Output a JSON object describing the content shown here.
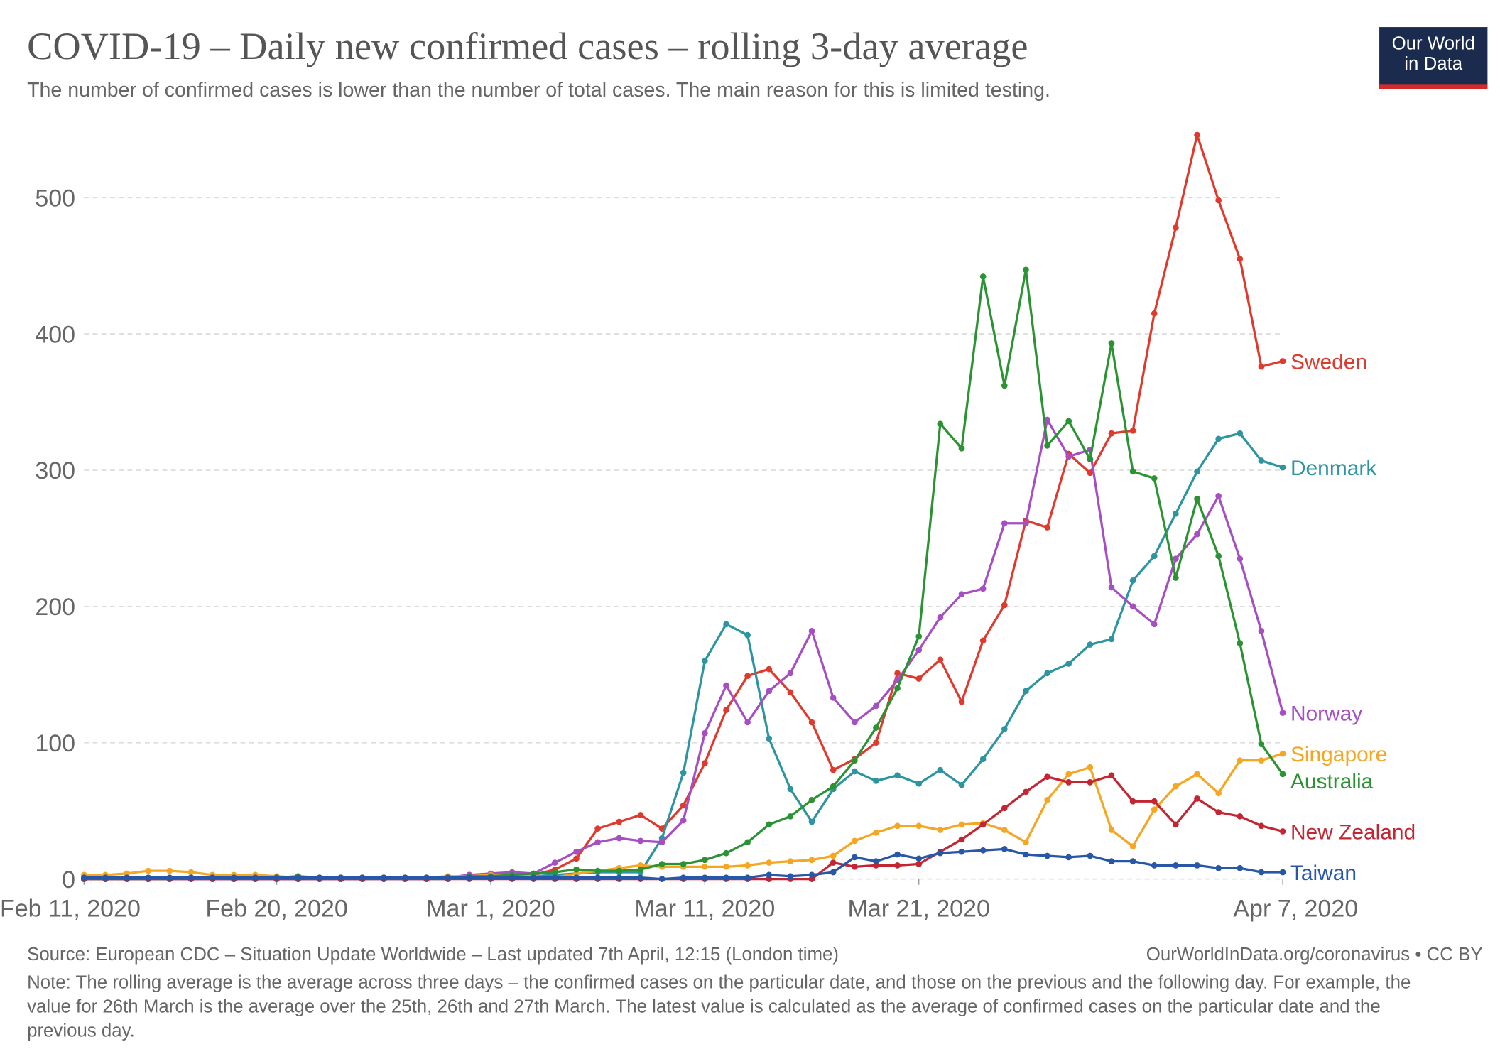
{
  "chart_data": {
    "type": "line",
    "title": "COVID-19 – Daily new confirmed cases – rolling 3-day average",
    "subtitle": "The number of confirmed cases is lower than the number of total cases. The main reason for this is limited testing.",
    "logo": [
      "Our World",
      "in Data"
    ],
    "source": "Source: European CDC – Situation Update Worldwide – Last updated 7th April, 12:15 (London time)",
    "attribution": "OurWorldInData.org/coronavirus • CC BY",
    "note": "Note: The rolling average is the average across three days – the confirmed cases on the particular date, and those on the previous and the following day. For example, the value for 26th March is the average over the 25th, 26th and 27th March. The latest value is calculated as the average of confirmed cases on the particular date and the previous day.",
    "x": [
      "2020-02-11",
      "2020-02-12",
      "2020-02-13",
      "2020-02-14",
      "2020-02-15",
      "2020-02-16",
      "2020-02-17",
      "2020-02-18",
      "2020-02-19",
      "2020-02-20",
      "2020-02-21",
      "2020-02-22",
      "2020-02-23",
      "2020-02-24",
      "2020-02-25",
      "2020-02-26",
      "2020-02-27",
      "2020-02-28",
      "2020-02-29",
      "2020-03-01",
      "2020-03-02",
      "2020-03-03",
      "2020-03-04",
      "2020-03-05",
      "2020-03-06",
      "2020-03-07",
      "2020-03-08",
      "2020-03-09",
      "2020-03-10",
      "2020-03-11",
      "2020-03-12",
      "2020-03-13",
      "2020-03-14",
      "2020-03-15",
      "2020-03-16",
      "2020-03-17",
      "2020-03-18",
      "2020-03-19",
      "2020-03-20",
      "2020-03-21",
      "2020-03-22",
      "2020-03-23",
      "2020-03-24",
      "2020-03-25",
      "2020-03-26",
      "2020-03-27",
      "2020-03-28",
      "2020-03-29",
      "2020-03-30",
      "2020-03-31",
      "2020-04-01",
      "2020-04-02",
      "2020-04-03",
      "2020-04-04",
      "2020-04-05",
      "2020-04-06",
      "2020-04-07"
    ],
    "xlim": [
      "2020-02-11",
      "2020-04-07"
    ],
    "xticks": [
      {
        "value": "2020-02-11",
        "label": "Feb 11, 2020"
      },
      {
        "value": "2020-02-20",
        "label": "Feb 20, 2020"
      },
      {
        "value": "2020-03-01",
        "label": "Mar 1, 2020"
      },
      {
        "value": "2020-03-11",
        "label": "Mar 11, 2020"
      },
      {
        "value": "2020-03-21",
        "label": "Mar 21, 2020"
      },
      {
        "value": "2020-04-07",
        "label": "Apr 7, 2020"
      }
    ],
    "ylim": [
      0,
      550
    ],
    "yticks": [
      0,
      100,
      200,
      300,
      400,
      500
    ],
    "grid": true,
    "series": [
      {
        "name": "Sweden",
        "color": "#e03a2f",
        "values": [
          0,
          0,
          0,
          0,
          0,
          0,
          0,
          0,
          0,
          0,
          0,
          0,
          0,
          0,
          1,
          1,
          1,
          1,
          3,
          3,
          3,
          3,
          7,
          15,
          37,
          42,
          47,
          37,
          54,
          85,
          124,
          149,
          154,
          137,
          115,
          80,
          88,
          100,
          151,
          147,
          161,
          130,
          175,
          201,
          263,
          258,
          312,
          298,
          327,
          329,
          415,
          478,
          546,
          498,
          455,
          376,
          380
        ]
      },
      {
        "name": "Denmark",
        "color": "#2e95a0",
        "values": [
          0,
          0,
          0,
          0,
          0,
          0,
          0,
          0,
          0,
          0,
          0,
          0,
          0,
          0,
          0,
          0,
          0,
          0,
          1,
          1,
          2,
          2,
          3,
          4,
          5,
          5,
          5,
          30,
          78,
          160,
          187,
          179,
          103,
          66,
          42,
          66,
          79,
          72,
          76,
          70,
          80,
          69,
          88,
          110,
          138,
          151,
          158,
          172,
          176,
          219,
          237,
          268,
          299,
          323,
          327,
          307,
          302
        ]
      },
      {
        "name": "Norway",
        "color": "#a54fc2",
        "values": [
          0,
          0,
          0,
          0,
          0,
          0,
          0,
          0,
          0,
          0,
          0,
          0,
          0,
          0,
          0,
          0,
          0,
          1,
          3,
          4,
          5,
          4,
          12,
          20,
          27,
          30,
          28,
          27,
          43,
          107,
          142,
          115,
          138,
          151,
          182,
          133,
          115,
          127,
          146,
          168,
          192,
          209,
          213,
          261,
          261,
          337,
          310,
          315,
          214,
          200,
          187,
          235,
          253,
          281,
          235,
          182,
          122
        ]
      },
      {
        "name": "Singapore",
        "color": "#f5a623",
        "values": [
          3,
          3,
          4,
          6,
          6,
          5,
          3,
          3,
          3,
          2,
          1,
          1,
          1,
          1,
          1,
          1,
          1,
          2,
          2,
          3,
          3,
          2,
          1,
          4,
          6,
          8,
          10,
          9,
          9,
          9,
          9,
          10,
          12,
          13,
          14,
          17,
          28,
          34,
          39,
          39,
          36,
          40,
          41,
          36,
          27,
          58,
          77,
          82,
          36,
          24,
          51,
          68,
          77,
          63,
          87,
          87,
          92
        ]
      },
      {
        "name": "Australia",
        "color": "#2c9334",
        "values": [
          0,
          0,
          0,
          0,
          0,
          1,
          1,
          1,
          1,
          1,
          2,
          1,
          1,
          1,
          1,
          1,
          1,
          1,
          2,
          2,
          3,
          4,
          5,
          7,
          6,
          6,
          7,
          11,
          11,
          14,
          19,
          27,
          40,
          46,
          58,
          68,
          87,
          111,
          140,
          178,
          334,
          316,
          442,
          362,
          447,
          318,
          336,
          308,
          393,
          299,
          294,
          221,
          279,
          237,
          173,
          99,
          77
        ]
      },
      {
        "name": "New Zealand",
        "color": "#c22633",
        "values": [
          0,
          0,
          0,
          0,
          0,
          0,
          0,
          0,
          0,
          0,
          0,
          0,
          0,
          0,
          0,
          0,
          0,
          0,
          0,
          0,
          0,
          0,
          0,
          0,
          0,
          0,
          0,
          0,
          0,
          0,
          0,
          0,
          0,
          0,
          0,
          12,
          9,
          10,
          10,
          11,
          20,
          29,
          40,
          52,
          64,
          75,
          71,
          71,
          76,
          57,
          57,
          40,
          59,
          49,
          46,
          39,
          35
        ]
      },
      {
        "name": "Taiwan",
        "color": "#2857a8",
        "values": [
          1,
          1,
          1,
          1,
          1,
          1,
          1,
          1,
          1,
          1,
          1,
          1,
          1,
          1,
          1,
          1,
          1,
          1,
          1,
          1,
          1,
          1,
          1,
          1,
          1,
          1,
          1,
          0,
          1,
          1,
          1,
          1,
          3,
          2,
          3,
          5,
          16,
          13,
          18,
          15,
          19,
          20,
          21,
          22,
          18,
          17,
          16,
          17,
          13,
          13,
          10,
          10,
          10,
          8,
          8,
          5,
          5
        ]
      }
    ]
  }
}
